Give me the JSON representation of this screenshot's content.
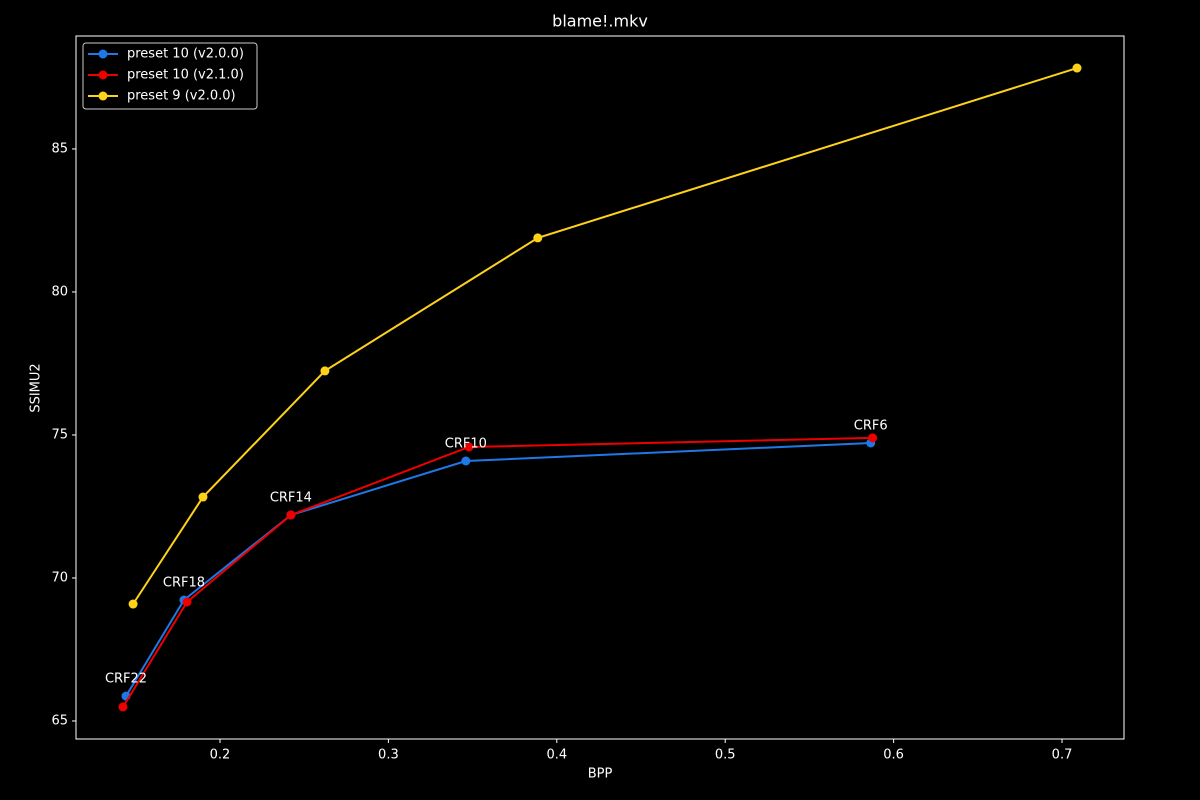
{
  "chart_data": {
    "type": "line",
    "title": "blame!.mkv",
    "x_label": "BPP",
    "y_label": "SSIMU2",
    "xlim": [
      0.1145,
      0.7368
    ],
    "ylim": [
      64.37,
      88.95
    ],
    "xticks": [
      0.2,
      0.3,
      0.4,
      0.5,
      0.6,
      0.7
    ],
    "yticks": [
      65,
      70,
      75,
      80,
      85
    ],
    "legend": "upper left",
    "marker": "circle",
    "series": [
      {
        "name": "preset 10 (v2.0.0)",
        "color": "#1f78e8",
        "x": [
          0.1442,
          0.1786,
          0.2421,
          0.346,
          0.5864
        ],
        "values": [
          65.87,
          69.23,
          72.2,
          74.09,
          74.72
        ],
        "labels": [
          "CRF22",
          "CRF18",
          "CRF14",
          "CRF10",
          "CRF6"
        ]
      },
      {
        "name": "preset 10 (v2.1.0)",
        "color": "#ee0000",
        "x": [
          0.1424,
          0.1804,
          0.2421,
          0.3478,
          0.5875
        ],
        "values": [
          65.49,
          69.16,
          72.2,
          74.58,
          74.9
        ]
      },
      {
        "name": "preset 9 (v2.0.0)",
        "color": "#ffd21a",
        "x": [
          0.1484,
          0.1899,
          0.2623,
          0.3887,
          0.7089
        ],
        "values": [
          69.09,
          72.83,
          77.24,
          81.89,
          87.83
        ]
      }
    ]
  }
}
